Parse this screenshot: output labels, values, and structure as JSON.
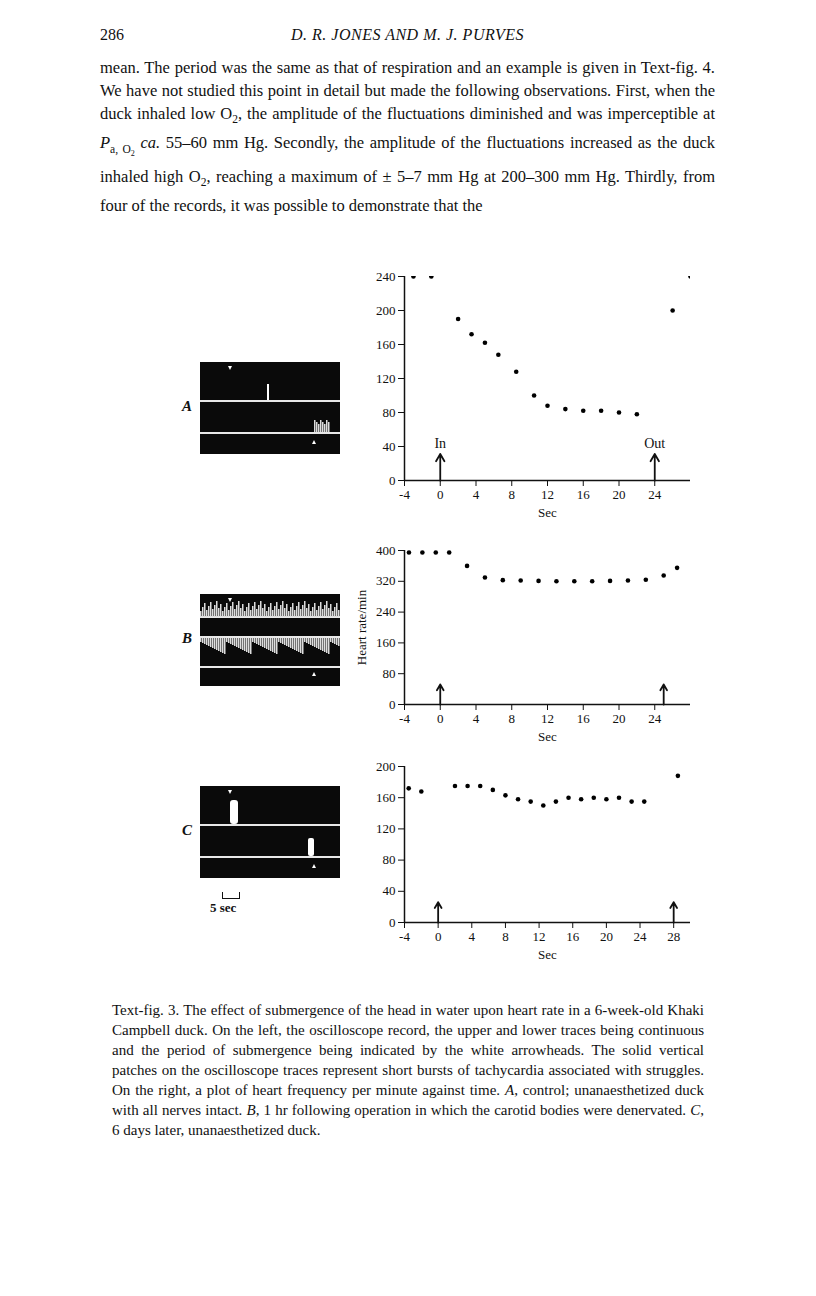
{
  "header": {
    "page_number": "286",
    "running_head": "D. R. JONES AND M. J. PURVES"
  },
  "body": [
    "mean. The period was the same as that of respiration and an example is given in Text-fig. 4. We have not studied this point in detail but made the following observations. First, when the duck inhaled low O",
    {
      "sub": "2"
    },
    ", the amplitude of the fluctuations diminished and was imperceptible at ",
    {
      "t": "P",
      "sub": "a, O",
      "subsub": "2"
    },
    " ",
    {
      "i": "ca."
    },
    " 55–60 mm Hg. Secondly, the amplitude of the fluctuations increased as the duck inhaled high O",
    {
      "sub": "2"
    },
    ", reaching a maximum of ± 5–7 mm Hg at 200–300 mm Hg. Thirdly, from four of the records, it was possible to demonstrate that the"
  ],
  "scale_bar": "5 sec",
  "caption": [
    "Text-fig. 3. The effect of submergence of the head in water upon heart rate in a 6-week-old Khaki Campbell duck. On the left, the oscilloscope record, the upper and lower traces being continuous and the period of submergence being indicated by the white arrowheads. The solid vertical patches on the oscilloscope traces represent short bursts of tachycardia associated with struggles. On the right, a plot of heart frequency per minute against time. ",
    {
      "i": "A"
    },
    ", control; unanaesthetized duck with all nerves intact. ",
    {
      "i": "B"
    },
    ", 1 hr following operation in which the carotid bodies were denervated. ",
    {
      "i": "C"
    },
    ", 6 days later, unanaesthetized duck."
  ],
  "chart_data": [
    {
      "type": "scatter",
      "title": "A",
      "x_label": "Sec",
      "color": "#000000",
      "marker": "circle",
      "x": [
        -3,
        -1,
        2,
        3.5,
        5,
        6.5,
        8.5,
        10.5,
        12,
        14,
        16,
        18,
        20,
        22,
        26,
        28
      ],
      "values": [
        240,
        240,
        190,
        172,
        162,
        148,
        128,
        100,
        88,
        84,
        82,
        82,
        80,
        78,
        200,
        240
      ],
      "xlim": [
        -4,
        28
      ],
      "ylim": [
        0,
        240
      ],
      "xticks": [
        -4,
        0,
        4,
        8,
        12,
        16,
        20,
        24
      ],
      "yticks": [
        0,
        40,
        80,
        120,
        160,
        200,
        240
      ],
      "arrows": [
        {
          "x": 0,
          "label": "In"
        },
        {
          "x": 24,
          "label": "Out"
        }
      ]
    },
    {
      "type": "scatter",
      "title": "B",
      "x_label": "Sec",
      "y_label": "Heart rate/min",
      "color": "#000000",
      "marker": "circle",
      "x": [
        -3.5,
        -2,
        -0.5,
        1,
        3,
        5,
        7,
        9,
        11,
        13,
        15,
        17,
        19,
        21,
        23,
        25,
        26.5
      ],
      "values": [
        395,
        395,
        395,
        395,
        360,
        330,
        323,
        322,
        321,
        320,
        320,
        320,
        321,
        322,
        324,
        335,
        355
      ],
      "xlim": [
        -4,
        28
      ],
      "ylim": [
        0,
        400
      ],
      "xticks": [
        -4,
        0,
        4,
        8,
        12,
        16,
        20,
        24
      ],
      "yticks": [
        0,
        80,
        160,
        240,
        320,
        400
      ],
      "arrows": [
        {
          "x": 0
        },
        {
          "x": 25
        }
      ]
    },
    {
      "type": "scatter",
      "title": "C",
      "x_label": "Sec",
      "color": "#000000",
      "marker": "circle",
      "x": [
        -3.5,
        -2,
        2,
        3.5,
        5,
        6.5,
        8,
        9.5,
        11,
        12.5,
        14,
        15.5,
        17,
        18.5,
        20,
        21.5,
        23,
        24.5,
        28.5
      ],
      "values": [
        172,
        168,
        175,
        175,
        175,
        170,
        163,
        158,
        155,
        150,
        155,
        160,
        158,
        160,
        158,
        160,
        155,
        155,
        188
      ],
      "xlim": [
        -4,
        30
      ],
      "ylim": [
        0,
        200
      ],
      "xticks": [
        -4,
        0,
        4,
        8,
        12,
        16,
        20,
        24,
        28
      ],
      "yticks": [
        0,
        40,
        80,
        120,
        160,
        200
      ],
      "arrows": [
        {
          "x": 0
        },
        {
          "x": 28
        }
      ]
    }
  ]
}
